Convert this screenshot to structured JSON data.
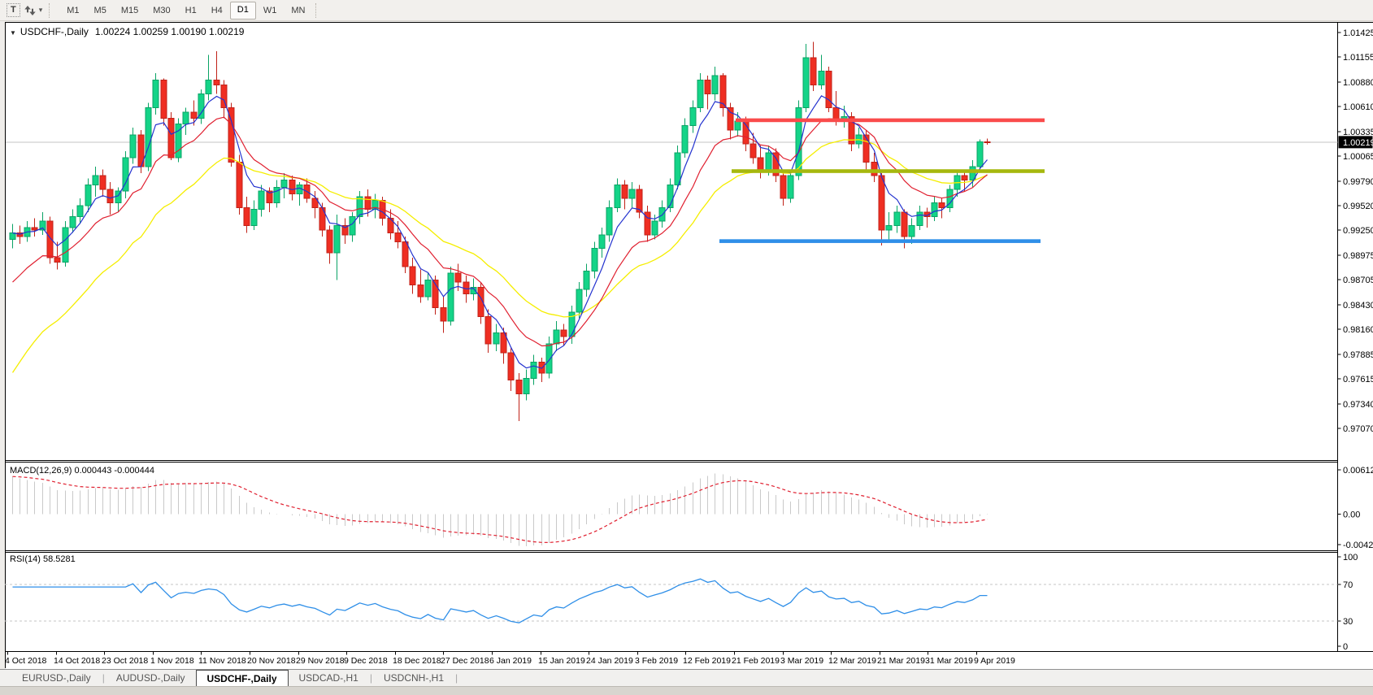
{
  "toolbar": {
    "text_tool_label": "T",
    "timeframes": [
      "M1",
      "M5",
      "M15",
      "M30",
      "H1",
      "H4",
      "D1",
      "W1",
      "MN"
    ],
    "active_timeframe": "D1"
  },
  "chart": {
    "title_symbol": "USDCHF-,Daily",
    "title_ohlc": "1.00224 1.00259 1.00190 1.00219",
    "macd_label": "MACD(12,26,9) 0.000443 -0.000444",
    "rsi_label": "RSI(14) 58.5281",
    "current_price": "1.00219"
  },
  "chart_data": {
    "type": "candlestick",
    "symbol": "USDCHF",
    "period": "Daily",
    "last_ohlc": {
      "open": 1.00224,
      "high": 1.00259,
      "low": 1.0019,
      "close": 1.00219
    },
    "price_axis_range": [
      0.9707,
      1.01425
    ],
    "price_axis_ticks": [
      "1.01425",
      "1.01155",
      "1.00880",
      "1.00610",
      "1.00335",
      "1.00065",
      "0.99790",
      "0.99520",
      "0.99250",
      "0.98975",
      "0.98705",
      "0.98430",
      "0.98160",
      "0.97885",
      "0.97615",
      "0.97340",
      "0.97070"
    ],
    "date_axis_ticks": [
      "4 Oct 2018",
      "14 Oct 2018",
      "23 Oct 2018",
      "1 Nov 2018",
      "11 Nov 2018",
      "20 Nov 2018",
      "29 Nov 2018",
      "9 Dec 2018",
      "18 Dec 2018",
      "27 Dec 2018",
      "6 Jan 2019",
      "15 Jan 2019",
      "24 Jan 2019",
      "3 Feb 2019",
      "12 Feb 2019",
      "21 Feb 2019",
      "3 Mar 2019",
      "12 Mar 2019",
      "21 Mar 2019",
      "31 Mar 2019",
      "9 Apr 2019"
    ],
    "candle_colors": {
      "up": "#14d488",
      "up_border": "#0aa365",
      "down": "#ef2e22",
      "down_border": "#c02218"
    },
    "moving_average_colors": {
      "fast": "#2433cf",
      "medium": "#e02030",
      "slow": "#f5ee00"
    },
    "bid_line_color": "#c6c6c6",
    "objects": [
      {
        "name": "resistance-hline",
        "price": 1.0046,
        "color": "#fa4b4b"
      },
      {
        "name": "support-hline-olive",
        "price": 0.999,
        "color": "#a6b80e"
      },
      {
        "name": "support-hline-blue",
        "price": 0.9913,
        "color": "#2f8fe8"
      }
    ],
    "macd": {
      "params": [
        12,
        26,
        9
      ],
      "value": 0.000443,
      "signal_value": -0.000444,
      "axis_ticks": [
        "0.006125",
        "0.00",
        "-0.00425"
      ],
      "histogram_color": "#c9c9c9",
      "signal_color": "#e02030"
    },
    "rsi": {
      "period": 14,
      "value": 58.5281,
      "axis_ticks": [
        "100",
        "70",
        "30",
        "0"
      ],
      "levels": [
        70,
        30
      ],
      "line_color": "#2f8fe8"
    },
    "candles": [
      [
        0.9915,
        0.9932,
        0.9905,
        0.9922
      ],
      [
        0.9922,
        0.993,
        0.991,
        0.9918
      ],
      [
        0.9918,
        0.9935,
        0.9912,
        0.9928
      ],
      [
        0.9928,
        0.9938,
        0.9918,
        0.9925
      ],
      [
        0.9925,
        0.9945,
        0.992,
        0.9935
      ],
      [
        0.9935,
        0.994,
        0.9888,
        0.9895
      ],
      [
        0.9895,
        0.9912,
        0.9882,
        0.989
      ],
      [
        0.989,
        0.9935,
        0.9885,
        0.9928
      ],
      [
        0.9928,
        0.9948,
        0.9922,
        0.994
      ],
      [
        0.994,
        0.996,
        0.9932,
        0.9952
      ],
      [
        0.9952,
        0.9982,
        0.9945,
        0.9975
      ],
      [
        0.9975,
        0.9995,
        0.9962,
        0.9985
      ],
      [
        0.9985,
        0.9992,
        0.9962,
        0.997
      ],
      [
        0.997,
        0.9978,
        0.9942,
        0.9955
      ],
      [
        0.9955,
        0.9972,
        0.9945,
        0.9968
      ],
      [
        0.9968,
        1.0012,
        0.996,
        1.0005
      ],
      [
        1.0005,
        1.0038,
        0.9998,
        1.003
      ],
      [
        1.003,
        1.0035,
        0.9988,
        0.9995
      ],
      [
        0.9995,
        1.0065,
        0.999,
        1.006
      ],
      [
        1.006,
        1.0098,
        1.0052,
        1.009
      ],
      [
        1.009,
        1.0092,
        1.004,
        1.0048
      ],
      [
        1.0048,
        1.0055,
        1.0002,
        1.0005
      ],
      [
        1.0005,
        1.0048,
        1.0,
        1.0042
      ],
      [
        1.0042,
        1.006,
        1.003,
        1.0055
      ],
      [
        1.0055,
        1.0068,
        1.004,
        1.0048
      ],
      [
        1.0048,
        1.008,
        1.0042,
        1.0075
      ],
      [
        1.0075,
        1.0118,
        1.0068,
        1.009
      ],
      [
        1.009,
        1.0122,
        1.0075,
        1.0085
      ],
      [
        1.0085,
        1.009,
        1.0048,
        1.006
      ],
      [
        1.006,
        1.0065,
        0.9995,
        1.0
      ],
      [
        1.0,
        1.0008,
        0.9942,
        0.995
      ],
      [
        0.995,
        0.9962,
        0.9922,
        0.993
      ],
      [
        0.993,
        0.9958,
        0.9925,
        0.9948
      ],
      [
        0.9948,
        0.9975,
        0.994,
        0.9968
      ],
      [
        0.9968,
        0.9972,
        0.9945,
        0.9955
      ],
      [
        0.9955,
        0.998,
        0.995,
        0.9972
      ],
      [
        0.9972,
        0.9988,
        0.996,
        0.998
      ],
      [
        0.998,
        0.9985,
        0.9958,
        0.9965
      ],
      [
        0.9965,
        0.9978,
        0.9952,
        0.9975
      ],
      [
        0.9975,
        0.9982,
        0.9955,
        0.996
      ],
      [
        0.996,
        0.9968,
        0.9938,
        0.995
      ],
      [
        0.995,
        0.9955,
        0.9918,
        0.9925
      ],
      [
        0.9925,
        0.993,
        0.9888,
        0.99
      ],
      [
        0.99,
        0.9942,
        0.987,
        0.993
      ],
      [
        0.993,
        0.9938,
        0.991,
        0.992
      ],
      [
        0.992,
        0.9945,
        0.9912,
        0.994
      ],
      [
        0.994,
        0.9968,
        0.9932,
        0.9962
      ],
      [
        0.9962,
        0.997,
        0.994,
        0.9948
      ],
      [
        0.9948,
        0.9965,
        0.9938,
        0.9958
      ],
      [
        0.9958,
        0.9962,
        0.993,
        0.9938
      ],
      [
        0.9938,
        0.9948,
        0.9915,
        0.9922
      ],
      [
        0.9922,
        0.9935,
        0.9905,
        0.9912
      ],
      [
        0.9912,
        0.9918,
        0.9878,
        0.9885
      ],
      [
        0.9885,
        0.9895,
        0.9855,
        0.9865
      ],
      [
        0.9865,
        0.9882,
        0.9845,
        0.9852
      ],
      [
        0.9852,
        0.9878,
        0.9848,
        0.987
      ],
      [
        0.987,
        0.9875,
        0.9832,
        0.984
      ],
      [
        0.984,
        0.9852,
        0.9812,
        0.9825
      ],
      [
        0.9825,
        0.9885,
        0.982,
        0.9878
      ],
      [
        0.9878,
        0.9888,
        0.9858,
        0.9868
      ],
      [
        0.9868,
        0.9875,
        0.9845,
        0.9855
      ],
      [
        0.9855,
        0.9872,
        0.9848,
        0.9862
      ],
      [
        0.9862,
        0.9868,
        0.9822,
        0.983
      ],
      [
        0.983,
        0.9838,
        0.979,
        0.98
      ],
      [
        0.98,
        0.9822,
        0.9792,
        0.9812
      ],
      [
        0.9812,
        0.9818,
        0.9778,
        0.979
      ],
      [
        0.979,
        0.9795,
        0.9748,
        0.976
      ],
      [
        0.976,
        0.9768,
        0.9715,
        0.9745
      ],
      [
        0.9745,
        0.9772,
        0.9738,
        0.9762
      ],
      [
        0.9762,
        0.9788,
        0.9755,
        0.978
      ],
      [
        0.978,
        0.9785,
        0.9758,
        0.9768
      ],
      [
        0.9768,
        0.9808,
        0.9762,
        0.98
      ],
      [
        0.98,
        0.9825,
        0.9792,
        0.9815
      ],
      [
        0.9815,
        0.9822,
        0.9798,
        0.9808
      ],
      [
        0.9808,
        0.9842,
        0.98,
        0.9835
      ],
      [
        0.9835,
        0.9868,
        0.9828,
        0.986
      ],
      [
        0.986,
        0.9888,
        0.9852,
        0.988
      ],
      [
        0.988,
        0.9912,
        0.9872,
        0.9905
      ],
      [
        0.9905,
        0.9928,
        0.9895,
        0.992
      ],
      [
        0.992,
        0.9958,
        0.9912,
        0.995
      ],
      [
        0.995,
        0.9982,
        0.9945,
        0.9975
      ],
      [
        0.9975,
        0.998,
        0.9948,
        0.996
      ],
      [
        0.996,
        0.9978,
        0.995,
        0.997
      ],
      [
        0.997,
        0.9975,
        0.9938,
        0.9945
      ],
      [
        0.9945,
        0.9952,
        0.9912,
        0.992
      ],
      [
        0.992,
        0.9942,
        0.9915,
        0.9935
      ],
      [
        0.9935,
        0.9958,
        0.9928,
        0.995
      ],
      [
        0.995,
        0.9982,
        0.9945,
        0.9975
      ],
      [
        0.9975,
        1.0018,
        0.997,
        1.001
      ],
      [
        1.001,
        1.0048,
        1.0005,
        1.004
      ],
      [
        1.004,
        1.0068,
        1.0032,
        1.006
      ],
      [
        1.006,
        1.0098,
        1.0055,
        1.009
      ],
      [
        1.009,
        1.0095,
        1.0058,
        1.0075
      ],
      [
        1.0075,
        1.0105,
        1.0068,
        1.0095
      ],
      [
        1.0095,
        1.0098,
        1.005,
        1.006
      ],
      [
        1.006,
        1.0065,
        1.0025,
        1.0035
      ],
      [
        1.0035,
        1.0055,
        1.0028,
        1.0045
      ],
      [
        1.0045,
        1.005,
        1.0012,
        1.002
      ],
      [
        1.002,
        1.0032,
        0.9998,
        1.0005
      ],
      [
        1.0005,
        1.0018,
        0.9982,
        0.999
      ],
      [
        0.999,
        1.0018,
        0.9985,
        1.001
      ],
      [
        1.001,
        1.0015,
        0.9978,
        0.9985
      ],
      [
        0.9985,
        0.9992,
        0.9952,
        0.996
      ],
      [
        0.996,
        0.9992,
        0.9955,
        0.9985
      ],
      [
        0.9985,
        1.0068,
        0.998,
        1.006
      ],
      [
        1.006,
        1.013,
        1.0055,
        1.0115
      ],
      [
        1.0115,
        1.0132,
        1.0078,
        1.0085
      ],
      [
        1.0085,
        1.0118,
        1.008,
        1.01
      ],
      [
        1.01,
        1.0105,
        1.0055,
        1.006
      ],
      [
        1.006,
        1.0078,
        1.004,
        1.0045
      ],
      [
        1.0045,
        1.0062,
        1.0038,
        1.005
      ],
      [
        1.005,
        1.0055,
        1.0012,
        1.002
      ],
      [
        1.002,
        1.0038,
        1.0015,
        1.003
      ],
      [
        1.003,
        1.0035,
        0.9992,
        1.0
      ],
      [
        1.0,
        1.001,
        0.9978,
        0.9985
      ],
      [
        0.9985,
        0.9988,
        0.9908,
        0.9925
      ],
      [
        0.9925,
        0.9945,
        0.9912,
        0.993
      ],
      [
        0.993,
        0.9952,
        0.9922,
        0.9945
      ],
      [
        0.9945,
        0.9948,
        0.9905,
        0.9918
      ],
      [
        0.9918,
        0.9938,
        0.991,
        0.993
      ],
      [
        0.993,
        0.9952,
        0.9925,
        0.9945
      ],
      [
        0.9945,
        0.995,
        0.9928,
        0.994
      ],
      [
        0.994,
        0.9962,
        0.9935,
        0.9955
      ],
      [
        0.9955,
        0.996,
        0.9938,
        0.995
      ],
      [
        0.995,
        0.9975,
        0.9945,
        0.997
      ],
      [
        0.997,
        0.9992,
        0.9962,
        0.9985
      ],
      [
        0.9985,
        0.999,
        0.9968,
        0.998
      ],
      [
        0.998,
        1.0002,
        0.9972,
        0.9995
      ],
      [
        0.9995,
        1.0025,
        0.999,
        1.0022
      ],
      [
        1.00224,
        1.00259,
        1.0019,
        1.00219
      ]
    ]
  },
  "tabs": {
    "active": "USDCHF-,Daily",
    "items": [
      "EURUSD-,Daily",
      "AUDUSD-,Daily",
      "USDCHF-,Daily",
      "USDCAD-,H1",
      "USDCNH-,H1"
    ]
  }
}
